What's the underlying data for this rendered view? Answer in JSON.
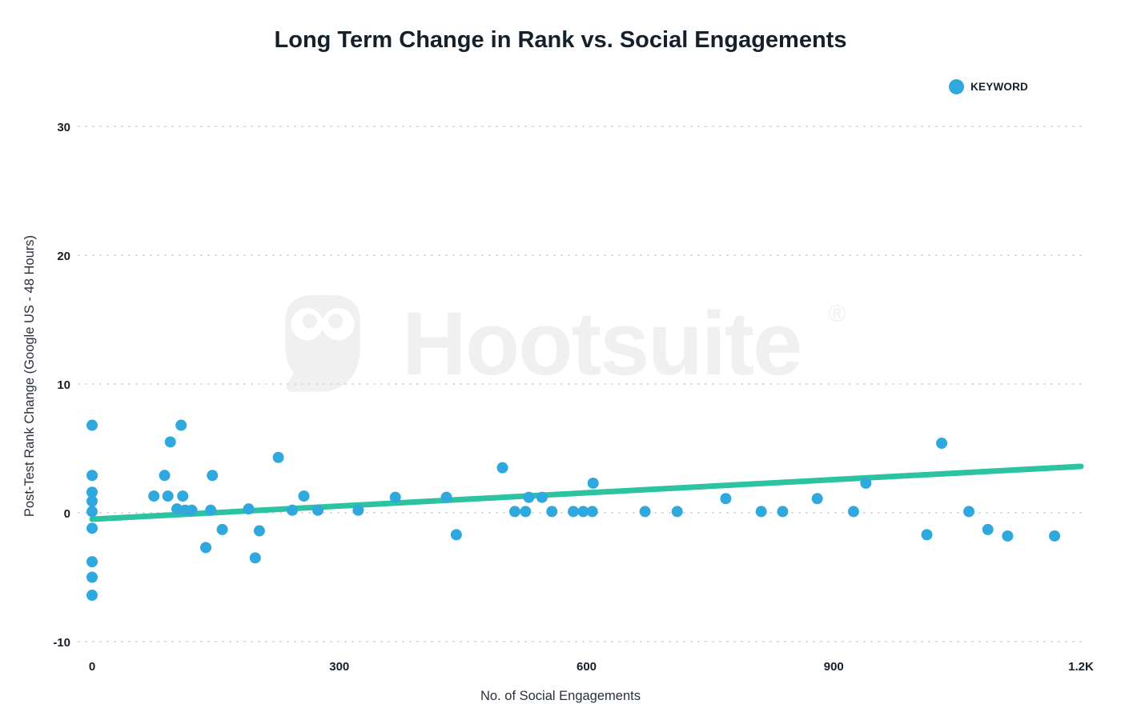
{
  "page": {
    "background": "#ffffff"
  },
  "watermark": {
    "text": "Hootsuite",
    "registered": "®",
    "color": "#f0f0f0"
  },
  "chart_data": {
    "type": "scatter",
    "title": "Long Term Change in Rank vs. Social Engagements",
    "xlabel": "No. of Social Engagements",
    "ylabel": "Post-Test Rank Change (Google US - 48 Hours)",
    "xlim": [
      0,
      1200
    ],
    "ylim": [
      -10,
      30
    ],
    "x_ticks": [
      {
        "value": 0,
        "label": "0"
      },
      {
        "value": 300,
        "label": "300"
      },
      {
        "value": 600,
        "label": "600"
      },
      {
        "value": 900,
        "label": "900"
      },
      {
        "value": 1200,
        "label": "1.2K"
      }
    ],
    "y_ticks": [
      {
        "value": -10,
        "label": "-10"
      },
      {
        "value": 0,
        "label": "0"
      },
      {
        "value": 10,
        "label": "10"
      },
      {
        "value": 20,
        "label": "20"
      },
      {
        "value": 30,
        "label": "30"
      }
    ],
    "grid": "horizontal-dotted",
    "grid_color": "#d9d9d9",
    "legend": {
      "position": "top-right",
      "entries": [
        {
          "label": "KEYWORD",
          "color": "#2fa8dd"
        }
      ]
    },
    "series": [
      {
        "name": "KEYWORD",
        "color": "#2fa8dd",
        "marker_radius": 7,
        "points": [
          [
            0,
            6.8
          ],
          [
            0,
            2.9
          ],
          [
            0,
            1.6
          ],
          [
            0,
            0.9
          ],
          [
            0,
            0.1
          ],
          [
            0,
            -1.2
          ],
          [
            0,
            -3.8
          ],
          [
            0,
            -5.0
          ],
          [
            0,
            -6.4
          ],
          [
            75,
            1.3
          ],
          [
            88,
            2.9
          ],
          [
            92,
            1.3
          ],
          [
            95,
            5.5
          ],
          [
            103,
            0.3
          ],
          [
            108,
            6.8
          ],
          [
            110,
            1.3
          ],
          [
            113,
            0.2
          ],
          [
            121,
            0.2
          ],
          [
            138,
            -2.7
          ],
          [
            144,
            0.2
          ],
          [
            146,
            2.9
          ],
          [
            158,
            -1.3
          ],
          [
            190,
            0.3
          ],
          [
            198,
            -3.5
          ],
          [
            203,
            -1.4
          ],
          [
            226,
            4.3
          ],
          [
            243,
            0.2
          ],
          [
            257,
            1.3
          ],
          [
            274,
            0.2
          ],
          [
            323,
            0.2
          ],
          [
            368,
            1.2
          ],
          [
            430,
            1.2
          ],
          [
            442,
            -1.7
          ],
          [
            498,
            3.5
          ],
          [
            513,
            0.1
          ],
          [
            526,
            0.1
          ],
          [
            530,
            1.2
          ],
          [
            546,
            1.2
          ],
          [
            558,
            0.1
          ],
          [
            584,
            0.1
          ],
          [
            596,
            0.1
          ],
          [
            607,
            0.1
          ],
          [
            608,
            2.3
          ],
          [
            671,
            0.1
          ],
          [
            710,
            0.1
          ],
          [
            769,
            1.1
          ],
          [
            812,
            0.1
          ],
          [
            838,
            0.1
          ],
          [
            880,
            1.1
          ],
          [
            924,
            0.1
          ],
          [
            939,
            2.3
          ],
          [
            1013,
            -1.7
          ],
          [
            1031,
            5.4
          ],
          [
            1064,
            0.1
          ],
          [
            1087,
            -1.3
          ],
          [
            1111,
            -1.8
          ],
          [
            1168,
            -1.8
          ]
        ]
      }
    ],
    "trendline": {
      "color": "#2cc3a0",
      "width": 7,
      "start": [
        0,
        -0.5
      ],
      "end": [
        1200,
        3.6
      ]
    }
  }
}
